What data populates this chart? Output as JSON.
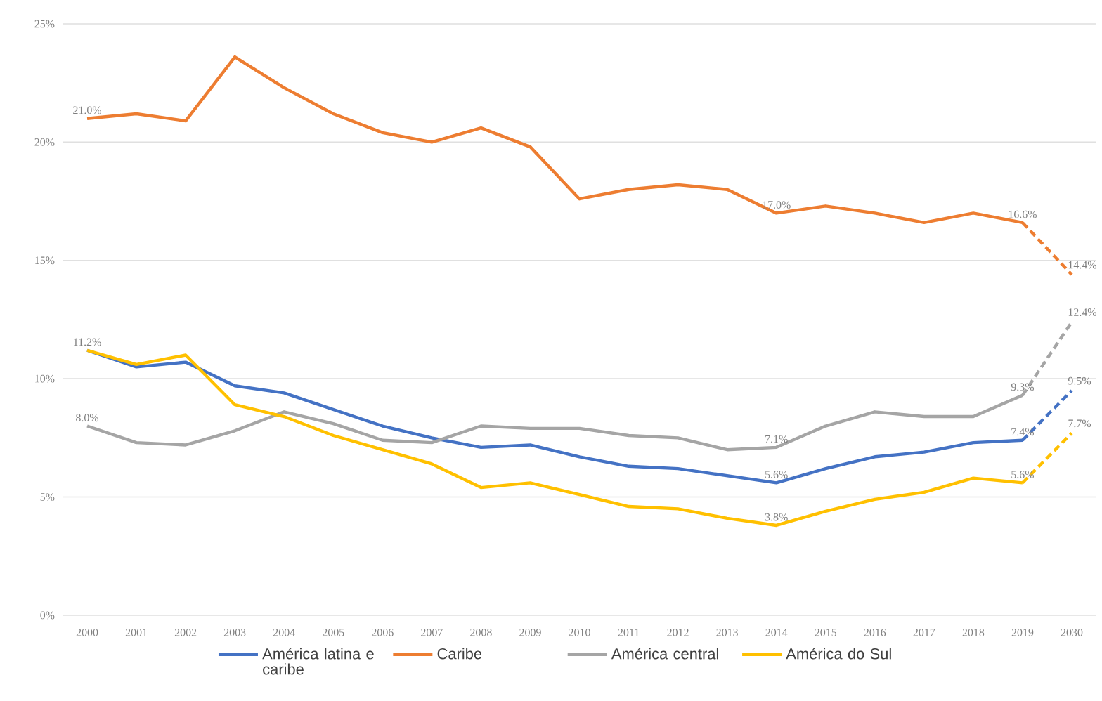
{
  "chart_data": {
    "type": "line",
    "categories": [
      "2000",
      "2001",
      "2002",
      "2003",
      "2004",
      "2005",
      "2006",
      "2007",
      "2008",
      "2009",
      "2010",
      "2011",
      "2012",
      "2013",
      "2014",
      "2015",
      "2016",
      "2017",
      "2018",
      "2019",
      "2030"
    ],
    "ylim": [
      0,
      25
    ],
    "yticks": [
      {
        "value": 0,
        "label": "0%"
      },
      {
        "value": 5,
        "label": "5%"
      },
      {
        "value": 10,
        "label": "10%"
      },
      {
        "value": 15,
        "label": "15%"
      },
      {
        "value": 20,
        "label": "20%"
      },
      {
        "value": 25,
        "label": "25%"
      }
    ],
    "grid": "y",
    "legend": "bottom",
    "marker": "none",
    "series": [
      {
        "name": "América latina e caribe",
        "color": "#4472c4",
        "values": [
          11.2,
          10.5,
          10.7,
          9.7,
          9.4,
          8.7,
          8.0,
          7.5,
          7.1,
          7.2,
          6.7,
          6.3,
          6.2,
          5.9,
          5.6,
          6.2,
          6.7,
          6.9,
          7.3,
          7.4,
          null
        ],
        "value_labels": [
          "11.2%",
          null,
          null,
          null,
          null,
          null,
          null,
          null,
          null,
          null,
          null,
          null,
          null,
          null,
          "5.6%",
          null,
          null,
          null,
          null,
          "7.4%",
          null
        ]
      },
      {
        "name": "Caribe",
        "color": "#ed7d31",
        "values": [
          21.0,
          21.2,
          20.9,
          23.6,
          22.3,
          21.2,
          20.4,
          20.0,
          20.6,
          19.8,
          17.6,
          18.0,
          18.2,
          18.0,
          17.0,
          17.3,
          17.0,
          16.6,
          17.0,
          16.6,
          null
        ],
        "value_labels": [
          "21.0%",
          null,
          null,
          null,
          null,
          null,
          null,
          null,
          null,
          null,
          null,
          null,
          null,
          null,
          "17.0%",
          null,
          null,
          null,
          null,
          "16.6%",
          null
        ]
      },
      {
        "name": "América central",
        "color": "#a5a5a5",
        "values": [
          8.0,
          7.3,
          7.2,
          7.8,
          8.6,
          8.1,
          7.4,
          7.3,
          8.0,
          7.9,
          7.9,
          7.6,
          7.5,
          7.0,
          7.1,
          8.0,
          8.6,
          8.4,
          8.4,
          9.3,
          null
        ],
        "value_labels": [
          "8.0%",
          null,
          null,
          null,
          null,
          null,
          null,
          null,
          null,
          null,
          null,
          null,
          null,
          null,
          "7.1%",
          null,
          null,
          null,
          null,
          "9.3%",
          null
        ]
      },
      {
        "name": "América do Sul",
        "color": "#ffc000",
        "values": [
          11.2,
          10.6,
          11.0,
          8.9,
          8.4,
          7.6,
          7.0,
          6.4,
          5.4,
          5.6,
          5.1,
          4.6,
          4.5,
          4.1,
          3.8,
          4.4,
          4.9,
          5.2,
          5.8,
          5.6,
          null
        ],
        "value_labels": [
          null,
          null,
          null,
          null,
          null,
          null,
          null,
          null,
          null,
          null,
          null,
          null,
          null,
          null,
          "3.8%",
          null,
          null,
          null,
          null,
          "5.6%",
          null
        ]
      },
      {
        "color": "#4472c4",
        "line_style": "dashed",
        "values": [
          null,
          null,
          null,
          null,
          null,
          null,
          null,
          null,
          null,
          null,
          null,
          null,
          null,
          null,
          null,
          null,
          null,
          null,
          null,
          7.4,
          9.5
        ],
        "value_labels": [
          null,
          null,
          null,
          null,
          null,
          null,
          null,
          null,
          null,
          null,
          null,
          null,
          null,
          null,
          null,
          null,
          null,
          null,
          null,
          null,
          "9.5%"
        ]
      },
      {
        "color": "#ed7d31",
        "line_style": "dashed",
        "values": [
          null,
          null,
          null,
          null,
          null,
          null,
          null,
          null,
          null,
          null,
          null,
          null,
          null,
          null,
          null,
          null,
          null,
          null,
          null,
          16.6,
          14.4
        ],
        "value_labels": [
          null,
          null,
          null,
          null,
          null,
          null,
          null,
          null,
          null,
          null,
          null,
          null,
          null,
          null,
          null,
          null,
          null,
          null,
          null,
          null,
          "14.4%"
        ]
      },
      {
        "color": "#a5a5a5",
        "line_style": "dashed",
        "values": [
          null,
          null,
          null,
          null,
          null,
          null,
          null,
          null,
          null,
          null,
          null,
          null,
          null,
          null,
          null,
          null,
          null,
          null,
          null,
          9.3,
          12.4
        ],
        "value_labels": [
          null,
          null,
          null,
          null,
          null,
          null,
          null,
          null,
          null,
          null,
          null,
          null,
          null,
          null,
          null,
          null,
          null,
          null,
          null,
          null,
          "12.4%"
        ]
      },
      {
        "color": "#ffc000",
        "line_style": "dashed",
        "values": [
          null,
          null,
          null,
          null,
          null,
          null,
          null,
          null,
          null,
          null,
          null,
          null,
          null,
          null,
          null,
          null,
          null,
          null,
          null,
          5.6,
          7.7
        ],
        "value_labels": [
          null,
          null,
          null,
          null,
          null,
          null,
          null,
          null,
          null,
          null,
          null,
          null,
          null,
          null,
          null,
          null,
          null,
          null,
          null,
          null,
          "7.7%"
        ]
      }
    ]
  }
}
